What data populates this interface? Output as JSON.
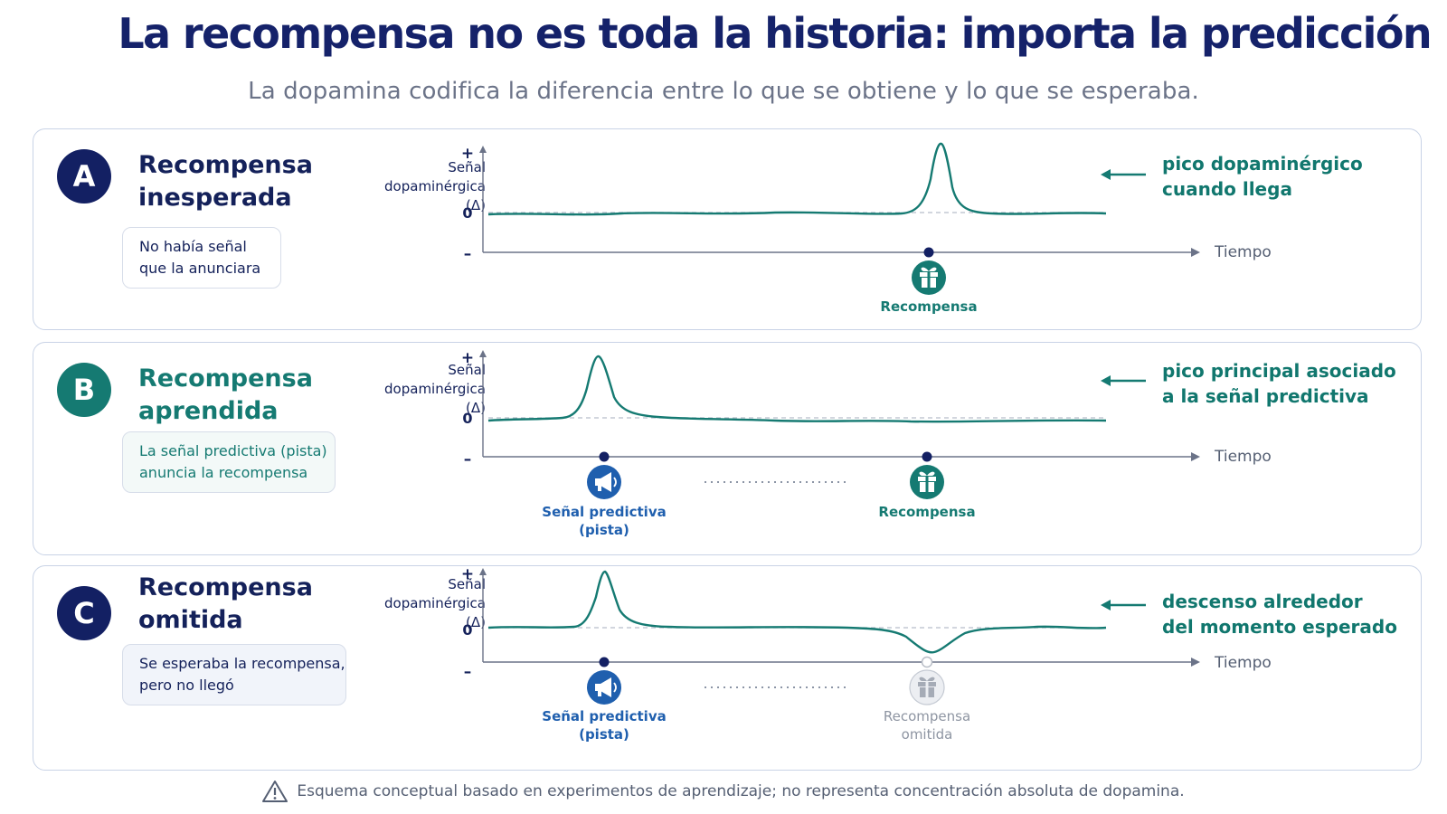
{
  "header": {
    "title": "La recompensa no es toda la historia: importa la predicción",
    "subtitle": "La dopamina codifica la diferencia entre lo que se obtiene y lo que se esperaba."
  },
  "axis": {
    "y_label_line1": "Señal",
    "y_label_line2": "dopaminérgica",
    "y_label_line3": "(Δ)",
    "y_plus": "+",
    "y_zero": "0",
    "y_minus": "–",
    "x_label": "Tiempo"
  },
  "panels": [
    {
      "letter": "A",
      "title_line1": "Recompensa",
      "title_line2": "inesperada",
      "note_line1": "No había señal",
      "note_line2": "que la anunciara",
      "annotation_line1": "pico dopaminérgico",
      "annotation_line2": "cuando llega",
      "events": [
        {
          "kind": "reward",
          "label_line1": "Recompensa",
          "label_line2": ""
        }
      ],
      "badge_color": "#132063",
      "title_color": "#14215a",
      "note_color": "#14215a"
    },
    {
      "letter": "B",
      "title_line1": "Recompensa",
      "title_line2": "aprendida",
      "note_line1": "La señal predictiva (pista)",
      "note_line2": "anuncia la recompensa",
      "annotation_line1": "pico principal asociado",
      "annotation_line2": "a la señal predictiva",
      "events": [
        {
          "kind": "cue",
          "label_line1": "Señal predictiva",
          "label_line2": "(pista)"
        },
        {
          "kind": "reward",
          "label_line1": "Recompensa",
          "label_line2": ""
        }
      ],
      "badge_color": "#157a72",
      "title_color": "#157a72",
      "note_color": "#157a72"
    },
    {
      "letter": "C",
      "title_line1": "Recompensa",
      "title_line2": "omitida",
      "note_line1": "Se esperaba la recompensa,",
      "note_line2": "pero no llegó",
      "annotation_line1": "descenso alrededor",
      "annotation_line2": "del momento esperado",
      "events": [
        {
          "kind": "cue",
          "label_line1": "Señal predictiva",
          "label_line2": "(pista)"
        },
        {
          "kind": "omitted",
          "label_line1": "Recompensa",
          "label_line2": "omitida"
        }
      ],
      "badge_color": "#132063",
      "title_color": "#14215a",
      "note_color": "#14215a"
    }
  ],
  "footer": {
    "icon": "warning-triangle-icon",
    "text": "Esquema conceptual basado en experimentos de aprendizaje; no representa concentración absoluta de dopamina."
  },
  "colors": {
    "navy": "#132063",
    "teal": "#157a72",
    "cue_blue": "#1f5fae",
    "omitted_gray": "#9aa0aa"
  }
}
